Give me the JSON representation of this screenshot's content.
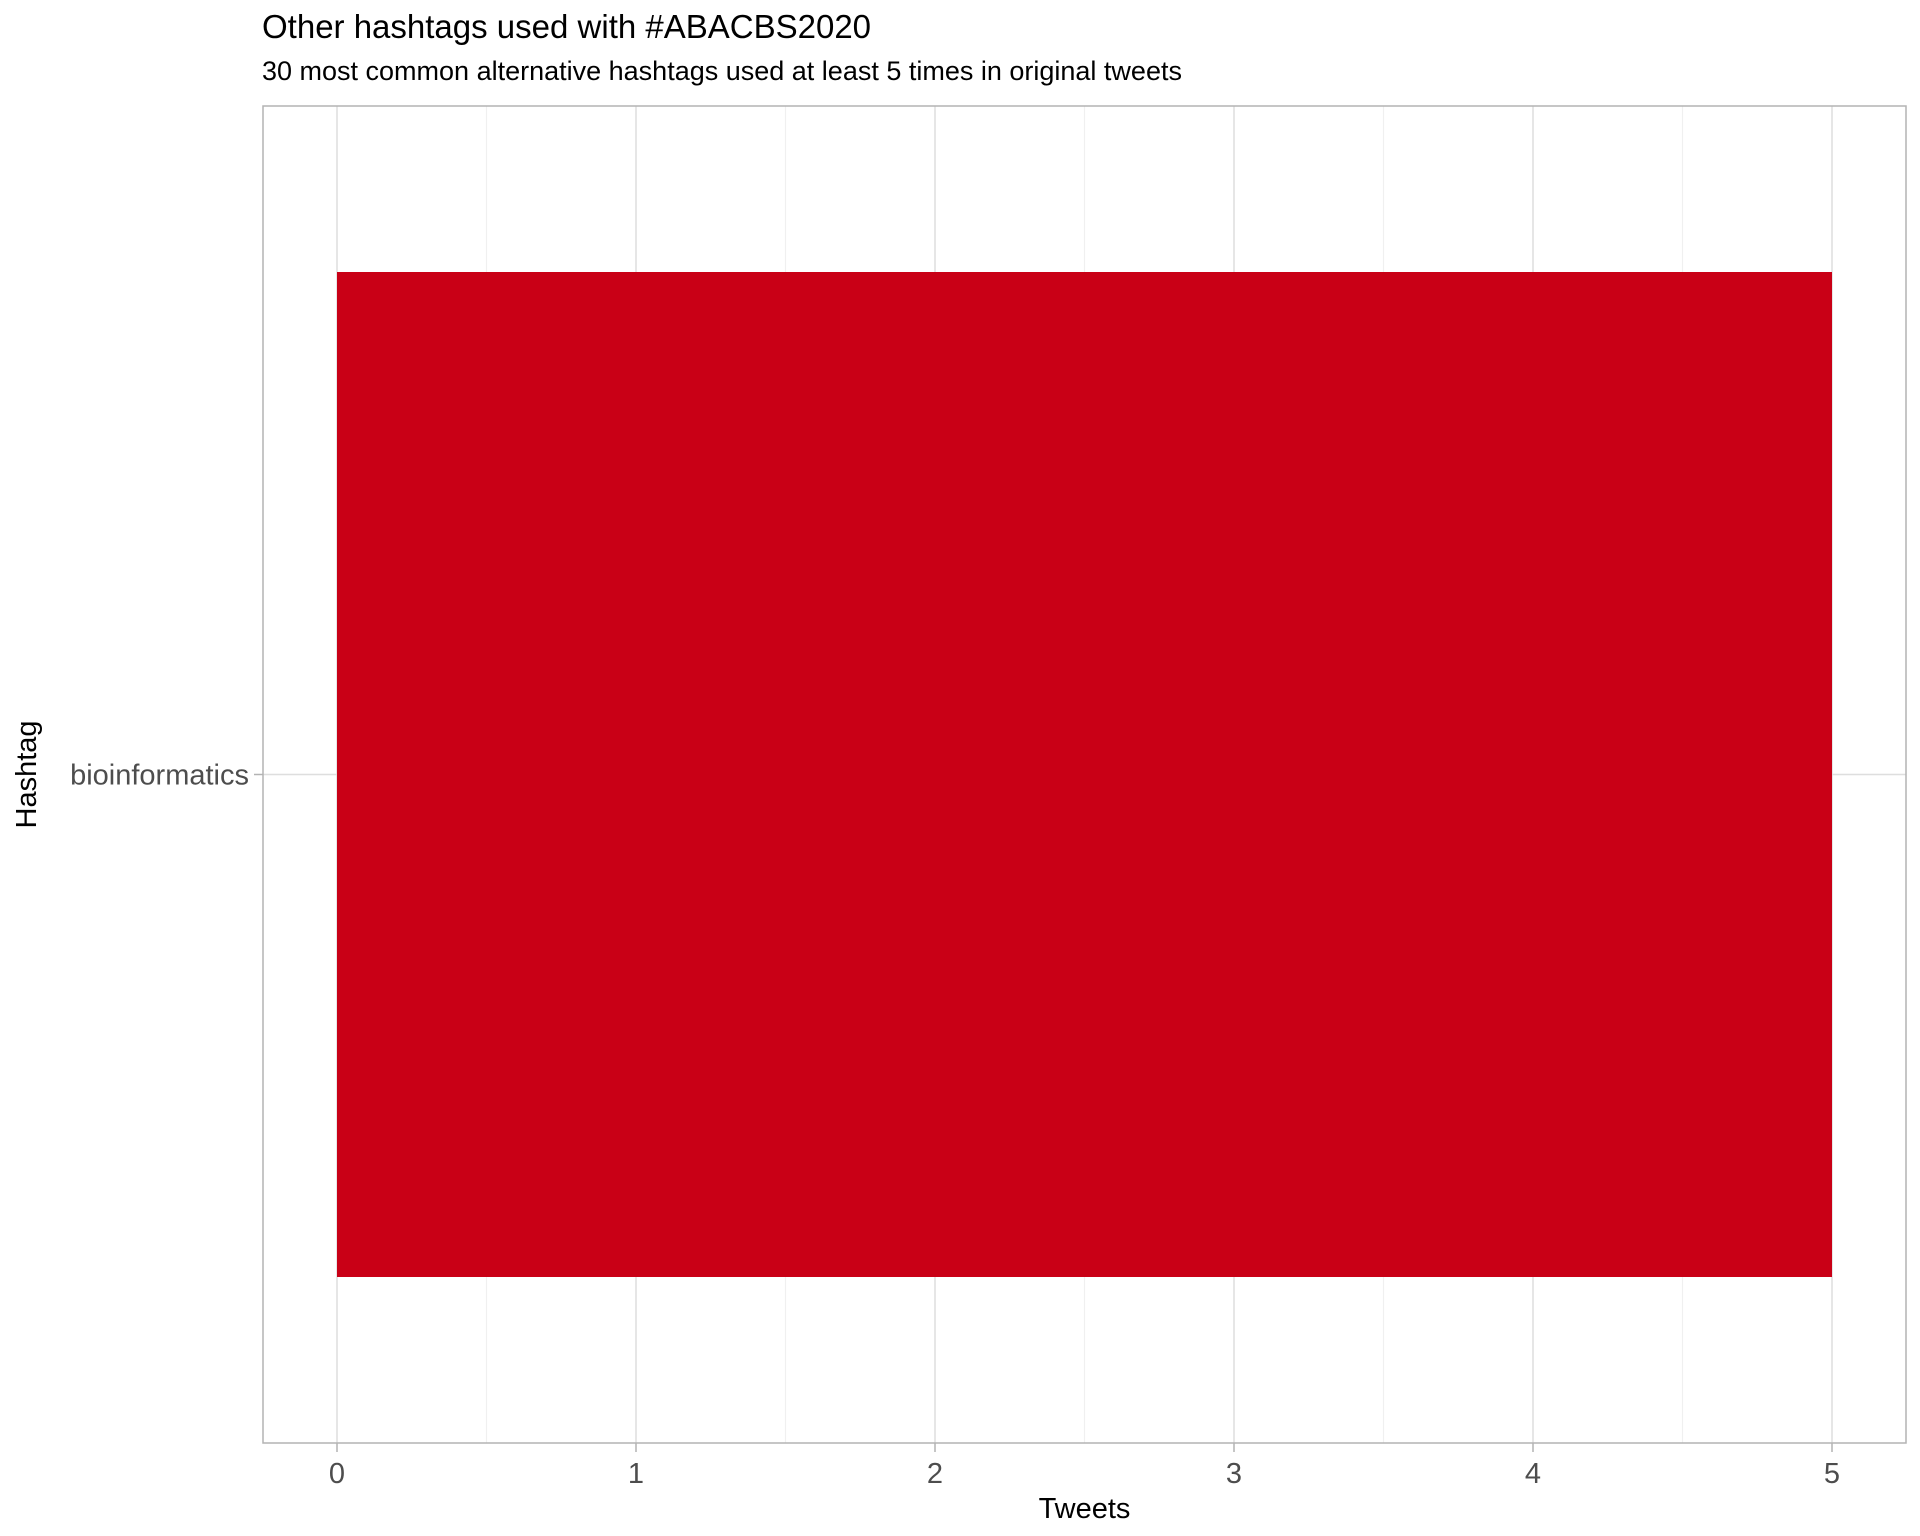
{
  "chart_data": {
    "type": "bar",
    "orientation": "horizontal",
    "title": "Other hashtags used with #ABACBS2020",
    "subtitle": "30 most common alternative hashtags used at least 5 times in original tweets",
    "xlabel": "Tweets",
    "ylabel": "Hashtag",
    "categories": [
      "bioinformatics"
    ],
    "values": [
      5
    ],
    "xlim": [
      0,
      5
    ],
    "xticks": [
      "0",
      "1",
      "2",
      "3",
      "4",
      "5"
    ],
    "grid": true,
    "bar_color": "#C90016"
  }
}
